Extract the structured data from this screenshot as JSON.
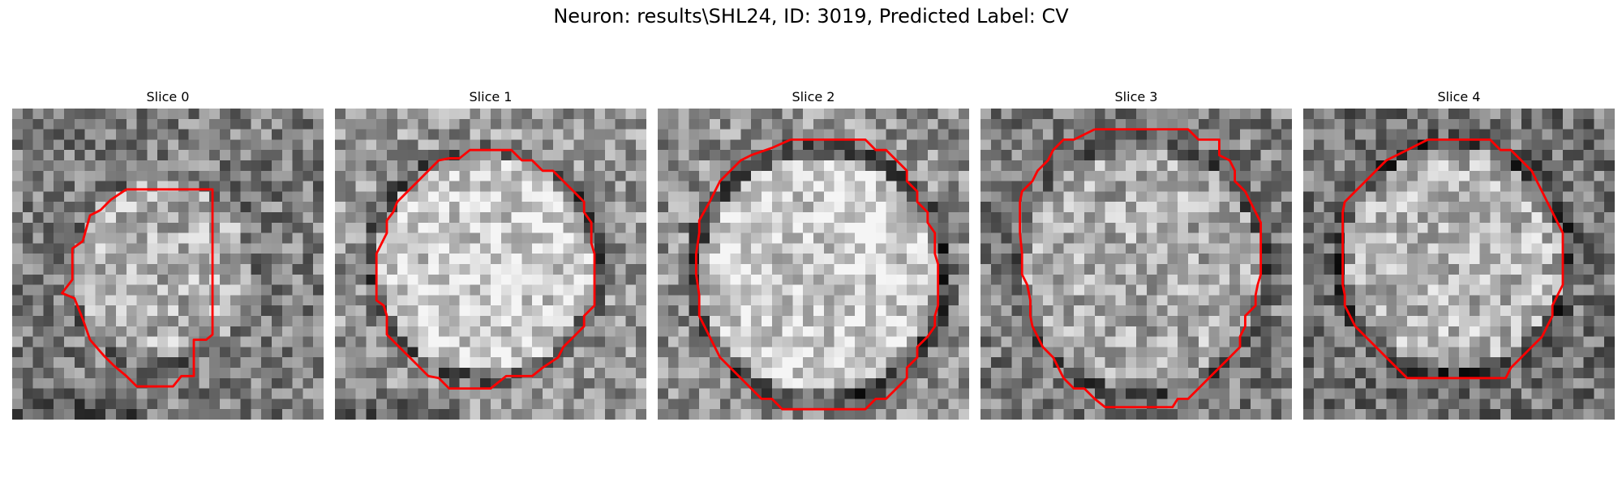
{
  "figure": {
    "title": "Neuron: results\\SHL24, ID: 3019, Predicted Label: CV"
  },
  "colors": {
    "contour": "#ff0000",
    "background": "#ffffff"
  },
  "slices": [
    {
      "label": "Slice 0"
    },
    {
      "label": "Slice 1"
    },
    {
      "label": "Slice 2"
    },
    {
      "label": "Slice 3"
    },
    {
      "label": "Slice 4"
    }
  ]
}
